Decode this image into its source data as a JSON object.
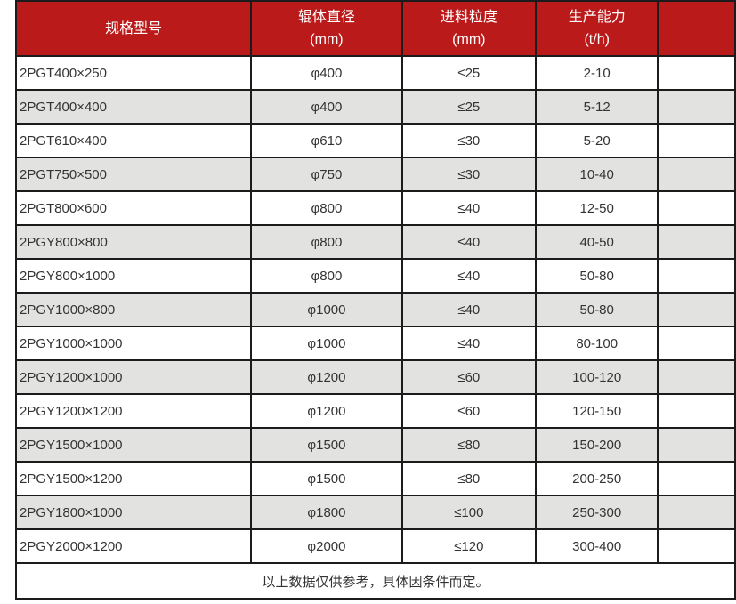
{
  "colors": {
    "header_bg": "#bb1a1b",
    "row_alt_bg": "#e2e2e0",
    "border": "#1b1b1b",
    "text": "#333333",
    "header_text": "#ffffff"
  },
  "table": {
    "columns": [
      {
        "title": "规格型号",
        "unit": ""
      },
      {
        "title": "辊体直径",
        "unit": "(mm)"
      },
      {
        "title": "进料粒度",
        "unit": "(mm)"
      },
      {
        "title": "生产能力",
        "unit": "(t/h)"
      }
    ],
    "rows": [
      [
        "2PGT400×250",
        "φ400",
        "≤25",
        "2-10"
      ],
      [
        "2PGT400×400",
        "φ400",
        "≤25",
        "5-12"
      ],
      [
        "2PGT610×400",
        "φ610",
        "≤30",
        "5-20"
      ],
      [
        "2PGT750×500",
        "φ750",
        "≤30",
        "10-40"
      ],
      [
        "2PGT800×600",
        "φ800",
        "≤40",
        "12-50"
      ],
      [
        "2PGY800×800",
        "φ800",
        "≤40",
        "40-50"
      ],
      [
        "2PGY800×1000",
        "φ800",
        "≤40",
        "50-80"
      ],
      [
        "2PGY1000×800",
        "φ1000",
        "≤40",
        "50-80"
      ],
      [
        "2PGY1000×1000",
        "φ1000",
        "≤40",
        "80-100"
      ],
      [
        "2PGY1200×1000",
        "φ1200",
        "≤60",
        "100-120"
      ],
      [
        "2PGY1200×1200",
        "φ1200",
        "≤60",
        "120-150"
      ],
      [
        "2PGY1500×1000",
        "φ1500",
        "≤80",
        "150-200"
      ],
      [
        "2PGY1500×1200",
        "φ1500",
        "≤80",
        "200-250"
      ],
      [
        "2PGY1800×1000",
        "φ1800",
        "≤100",
        "250-300"
      ],
      [
        "2PGY2000×1200",
        "φ2000",
        "≤120",
        "300-400"
      ]
    ],
    "footer_note": "以上数据仅供参考，具体因条件而定。"
  }
}
